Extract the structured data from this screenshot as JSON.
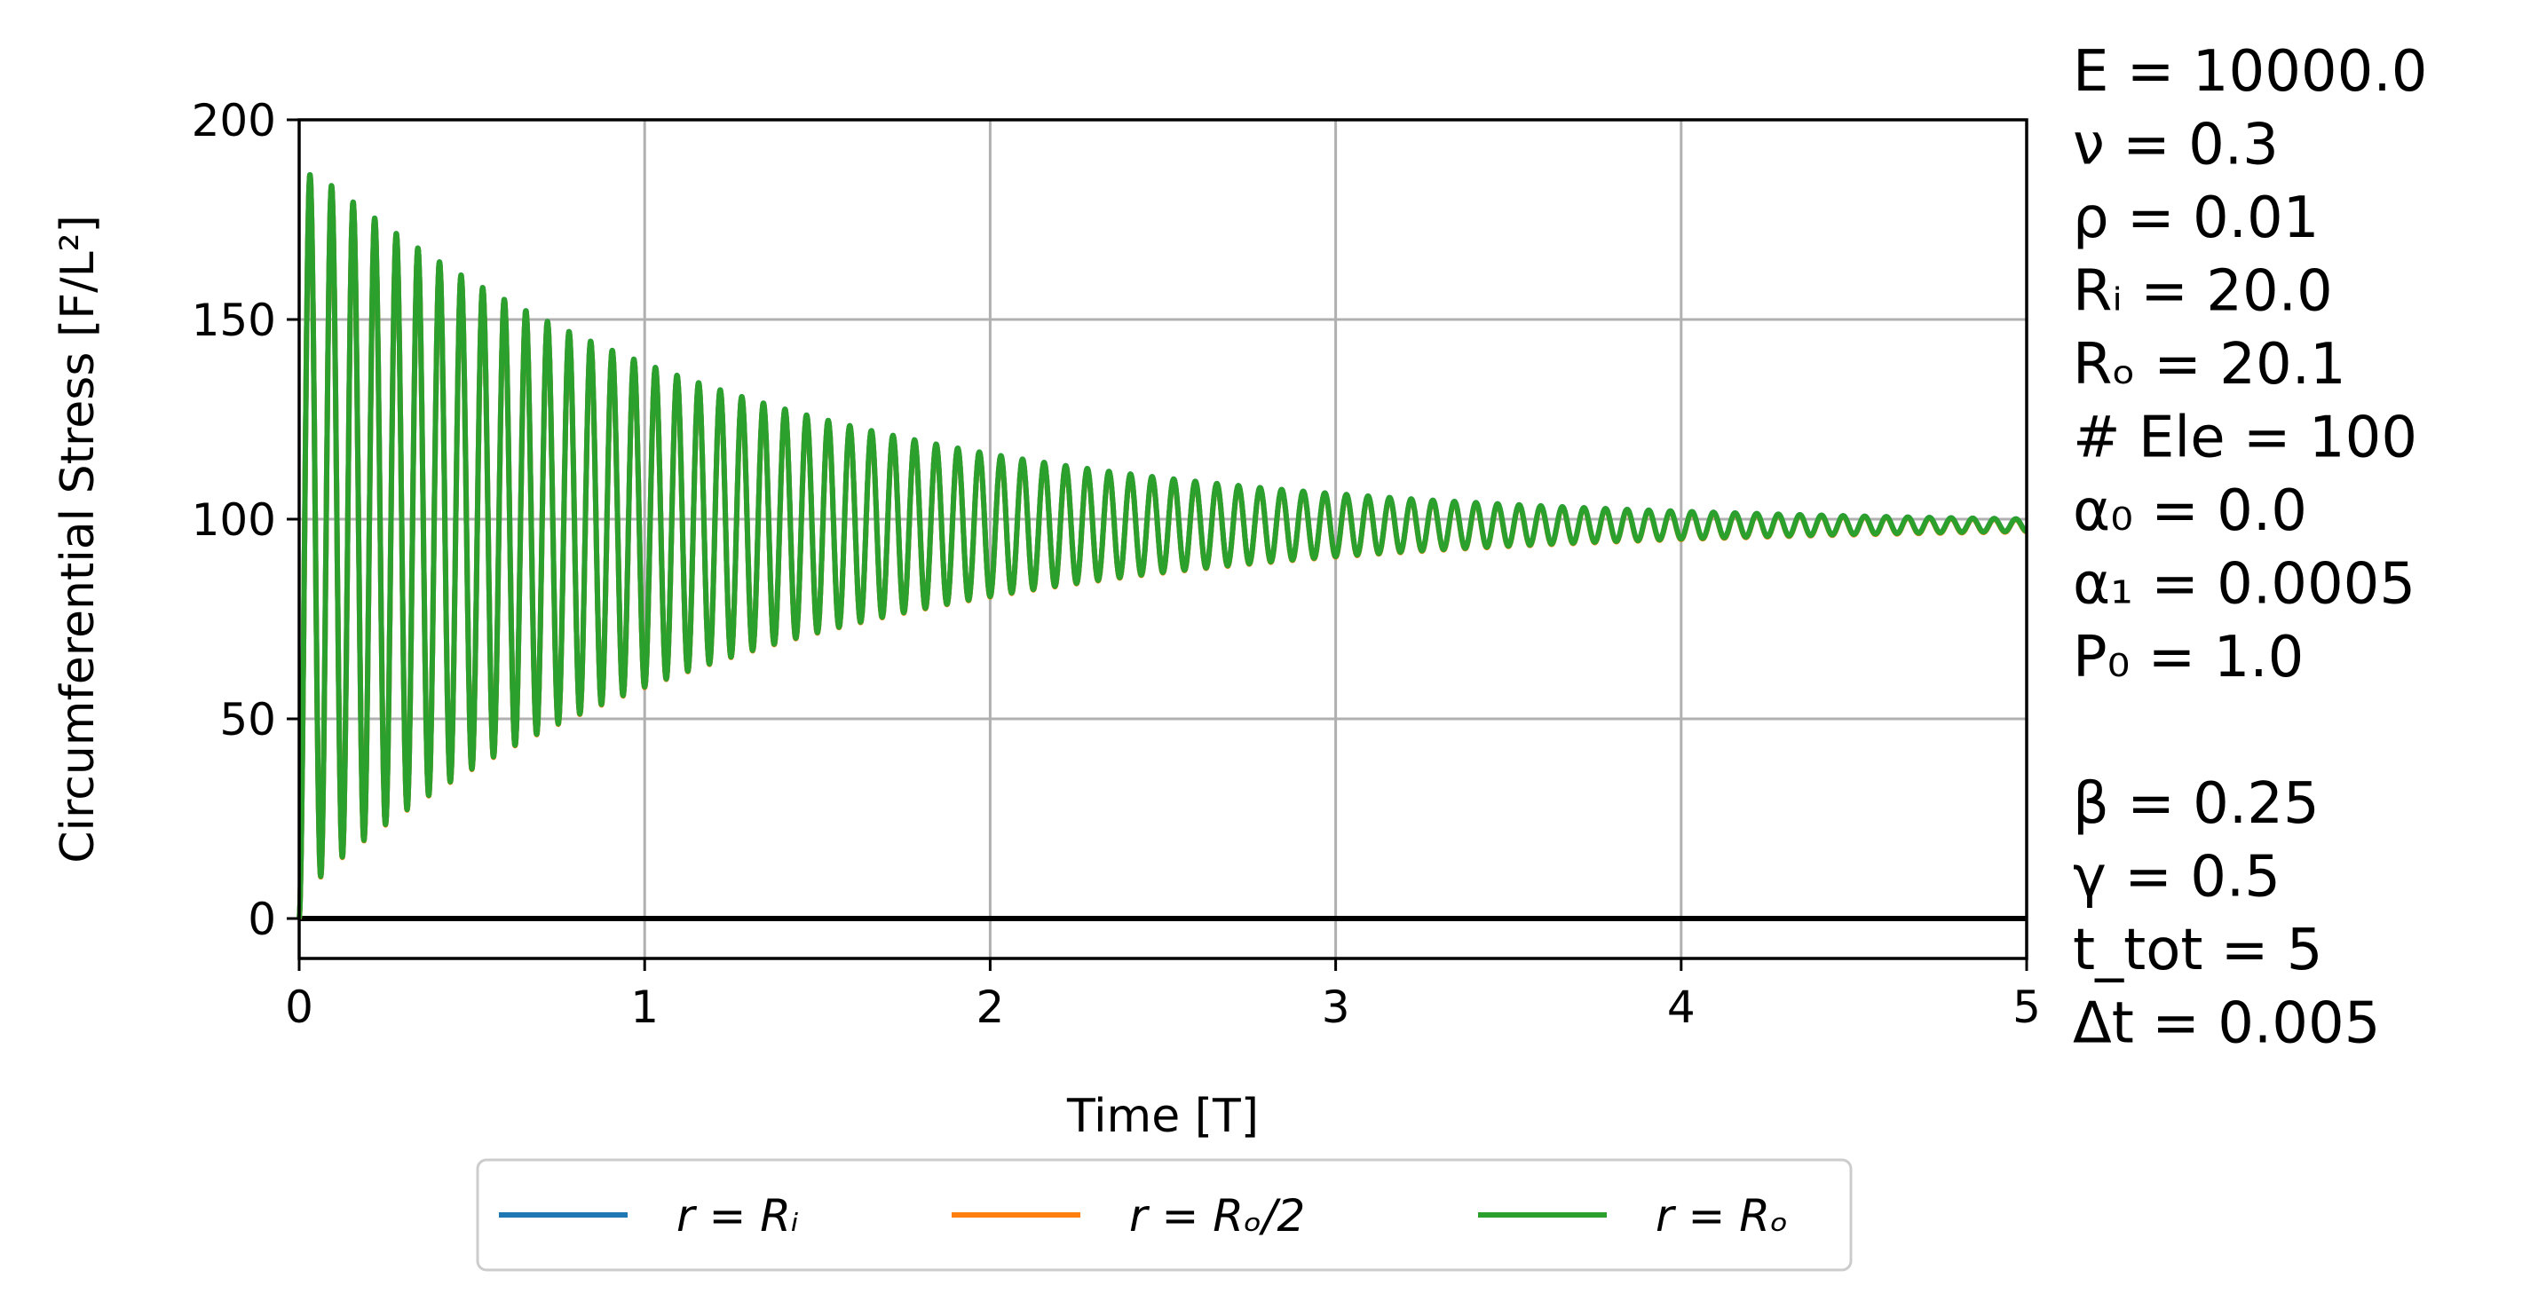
{
  "chart_data": {
    "type": "line",
    "xlabel": "Time [T]",
    "ylabel": "Circumferential Stress [F/L²]",
    "xlim": [
      0,
      5
    ],
    "ylim": [
      -10,
      200
    ],
    "xticks": [
      "0",
      "1",
      "2",
      "3",
      "4",
      "5"
    ],
    "yticks": [
      "0",
      "50",
      "100",
      "150",
      "200"
    ],
    "grid": true,
    "legend_position": "below",
    "reference_line_y": 0,
    "signal": {
      "mean": 98.5,
      "initial_amplitude": 92,
      "period": 0.0625,
      "decay_per_unit_time": 0.82,
      "t_end": 5,
      "samples_dt": 0.005
    },
    "series": [
      {
        "name": "r = Rᵢ",
        "color": "#1f77b4"
      },
      {
        "name": "r = Rₒ/2",
        "color": "#ff7f0e"
      },
      {
        "name": "r = Rₒ",
        "color": "#2ca02c"
      }
    ],
    "parameters": [
      "E = 10000.0",
      "ν = 0.3",
      "ρ = 0.01",
      "Rᵢ = 20.0",
      "Rₒ = 20.1",
      "# Ele = 100",
      "α₀ = 0.0",
      "α₁ = 0.0005",
      "P₀ = 1.0",
      "",
      "β = 0.25",
      "γ = 0.5",
      "t_tot = 5",
      "Δt = 0.005"
    ]
  }
}
